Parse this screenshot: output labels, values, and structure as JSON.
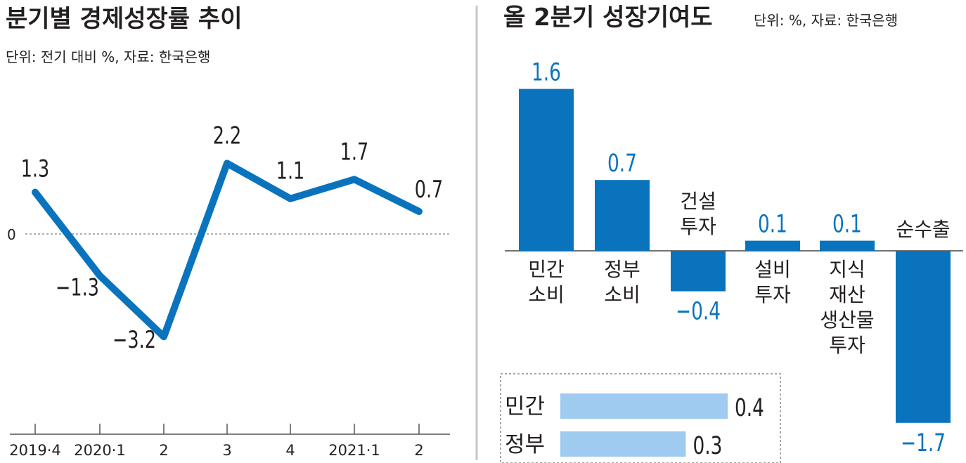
{
  "colors": {
    "series": "#0a73bd",
    "value_label": "#0a73bd",
    "text": "#231f20",
    "inset_bar": "#9ecbef",
    "divider": "#c8c8c8",
    "zero_line": "#666666"
  },
  "left_panel": {
    "title": "분기별 경제성장률 추이",
    "subtitle": "단위: 전기 대비 %, 자료: 한국은행"
  },
  "right_panel": {
    "title": "올 2분기 성장기여도",
    "subtitle": "단위: %, 자료: 한국은행"
  },
  "chart_data": [
    {
      "type": "line",
      "title": "분기별 경제성장률 추이",
      "categories": [
        "2019·4",
        "2020·1",
        "2",
        "3",
        "4",
        "2021·1",
        "2"
      ],
      "series": [
        {
          "values": [
            1.3,
            -1.3,
            -3.2,
            2.2,
            1.1,
            1.7,
            0.7
          ]
        }
      ],
      "value_labels": [
        "1.3",
        "−1.3",
        "−3.2",
        "2.2",
        "1.1",
        "1.7",
        "0.7"
      ],
      "zero_label": "0",
      "ylim": [
        -3.2,
        2.2
      ],
      "grid": false
    },
    {
      "type": "bar",
      "title": "올 2분기 성장기여도",
      "categories": [
        "민간 소비",
        "정부 소비",
        "건설 투자",
        "설비 투자",
        "지식 재산 생산물 투자",
        "순수출"
      ],
      "category_lines": [
        [
          "민간",
          "소비"
        ],
        [
          "정부",
          "소비"
        ],
        [
          "건설",
          "투자"
        ],
        [
          "설비",
          "투자"
        ],
        [
          "지식",
          "재산",
          "생산물",
          "투자"
        ],
        [
          "순수출"
        ]
      ],
      "values": [
        1.6,
        0.7,
        -0.4,
        0.1,
        0.1,
        -1.7
      ],
      "value_labels": [
        "1.6",
        "0.7",
        "−0.4",
        "0.1",
        "0.1",
        "−1.7"
      ],
      "grid": false
    },
    {
      "type": "bar",
      "orientation": "horizontal",
      "categories": [
        "민간",
        "정부"
      ],
      "values": [
        0.4,
        0.3
      ],
      "value_labels": [
        "0.4",
        "0.3"
      ]
    }
  ]
}
